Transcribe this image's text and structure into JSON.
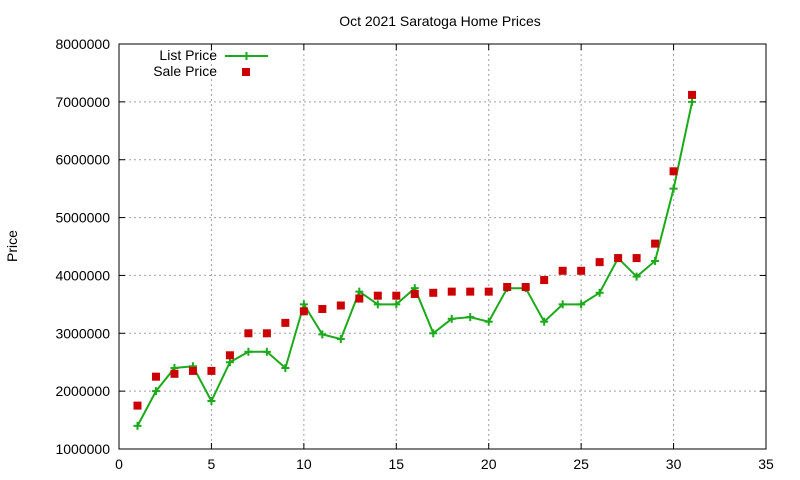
{
  "chart_data": {
    "type": "line",
    "title": "Oct 2021 Saratoga Home Prices",
    "xlabel": "",
    "ylabel": "Price",
    "xlim": [
      0,
      35
    ],
    "ylim": [
      1000000,
      8000000
    ],
    "xticks": [
      0,
      5,
      10,
      15,
      20,
      25,
      30,
      35
    ],
    "yticks": [
      1000000,
      2000000,
      3000000,
      4000000,
      5000000,
      6000000,
      7000000,
      8000000
    ],
    "grid": true,
    "legend_position": "top-left",
    "series": [
      {
        "name": "List Price",
        "style": "line-with-plus-markers",
        "color": "#1aaa1a",
        "x": [
          1,
          2,
          3,
          4,
          5,
          6,
          7,
          8,
          9,
          10,
          11,
          12,
          13,
          14,
          15,
          16,
          17,
          18,
          19,
          20,
          21,
          22,
          23,
          24,
          25,
          26,
          27,
          28,
          29,
          30,
          31
        ],
        "y": [
          1400000,
          2000000,
          2400000,
          2430000,
          1830000,
          2500000,
          2680000,
          2680000,
          2400000,
          3500000,
          2980000,
          2900000,
          3720000,
          3500000,
          3500000,
          3780000,
          3000000,
          3250000,
          3280000,
          3200000,
          3780000,
          3780000,
          3200000,
          3500000,
          3500000,
          3700000,
          4300000,
          3980000,
          4250000,
          5500000,
          7000000
        ]
      },
      {
        "name": "Sale Price",
        "style": "square-markers",
        "color": "#cc0000",
        "x": [
          1,
          2,
          3,
          4,
          5,
          6,
          7,
          8,
          9,
          10,
          11,
          12,
          13,
          14,
          15,
          16,
          17,
          18,
          19,
          20,
          21,
          22,
          23,
          24,
          25,
          26,
          27,
          28,
          29,
          30,
          31
        ],
        "y": [
          1750000,
          2250000,
          2300000,
          2350000,
          2350000,
          2620000,
          3000000,
          3000000,
          3180000,
          3380000,
          3420000,
          3480000,
          3600000,
          3650000,
          3650000,
          3680000,
          3700000,
          3720000,
          3720000,
          3720000,
          3800000,
          3800000,
          3920000,
          4080000,
          4080000,
          4230000,
          4300000,
          4300000,
          4550000,
          5800000,
          7120000
        ]
      }
    ]
  }
}
